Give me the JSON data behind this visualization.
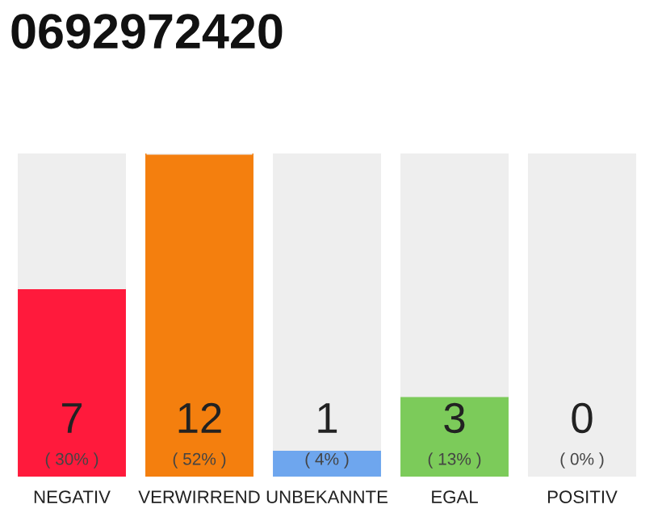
{
  "chart_data": {
    "type": "bar",
    "title": "0692972420",
    "categories": [
      "NEGATIV",
      "VERWIRREND",
      "UNBEKANNTE",
      "EGAL",
      "POSITIV"
    ],
    "stacked": true,
    "series": [
      {
        "values": [
          7,
          12,
          1,
          3,
          0
        ],
        "colors": [
          "#ff1a3c",
          "#f47f0e",
          "#6ea6ee",
          "#7ccb5a",
          "#c8c8c8"
        ],
        "value_labels": [
          "7\n( 30% )",
          "12\n( 52% )",
          "1\n( 4% )",
          "3\n( 13% )",
          "0\n( 0% )"
        ]
      },
      {
        "values": [
          5,
          0,
          11,
          9,
          12
        ],
        "color": "#eeeeee"
      }
    ],
    "grid": false,
    "legend": false
  }
}
